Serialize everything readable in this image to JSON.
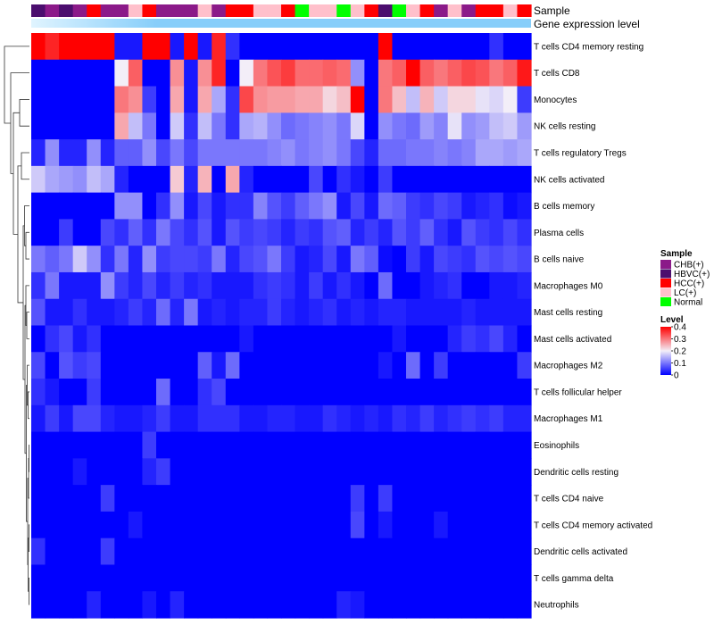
{
  "chart_data": {
    "type": "heatmap",
    "title": "",
    "rows": [
      "T cells CD4 memory resting",
      "T cells CD8",
      "Monocytes",
      "NK cells resting",
      "T cells regulatory  Tregs",
      "NK cells activated",
      "B cells memory",
      "Plasma cells",
      "B cells naive",
      "Macrophages M0",
      "Mast cells resting",
      "Mast cells activated",
      "Macrophages M2",
      "T cells follicular helper",
      "Macrophages M1",
      "Eosinophils",
      "Dendritic cells resting",
      "T cells CD4 naive",
      "T cells CD4 memory activated",
      "Dendritic cells activated",
      "T cells gamma delta",
      "Neutrophils"
    ],
    "samples": [
      "HBVC(+)",
      "CHB(+)",
      "HBVC(+)",
      "CHB(+)",
      "HCC(+)",
      "CHB(+)",
      "CHB(+)",
      "LC(+)",
      "HCC(+)",
      "CHB(+)",
      "CHB(+)",
      "CHB(+)",
      "LC(+)",
      "CHB(+)",
      "HCC(+)",
      "HCC(+)",
      "LC(+)",
      "LC(+)",
      "HCC(+)",
      "Normal",
      "LC(+)",
      "LC(+)",
      "Normal",
      "LC(+)",
      "HCC(+)",
      "HBVC(+)",
      "Normal",
      "LC(+)",
      "HCC(+)",
      "CHB(+)",
      "LC(+)",
      "CHB(+)",
      "HCC(+)",
      "HCC(+)",
      "LC(+)",
      "HCC(+)"
    ],
    "values": [
      [
        0.4,
        0.37,
        0.4,
        0.4,
        0.4,
        0.4,
        0.02,
        0.02,
        0.4,
        0.4,
        0.02,
        0.4,
        0.02,
        0.37,
        0.04,
        0.0,
        0.0,
        0.0,
        0.0,
        0.0,
        0.0,
        0.0,
        0.0,
        0.0,
        0.0,
        0.4,
        0.0,
        0.0,
        0.0,
        0.0,
        0.0,
        0.0,
        0.0,
        0.04,
        0.0,
        0.0
      ],
      [
        0.0,
        0.0,
        0.0,
        0.0,
        0.0,
        0.0,
        0.2,
        0.32,
        0.0,
        0.0,
        0.28,
        0.02,
        0.28,
        0.37,
        0.0,
        0.2,
        0.3,
        0.33,
        0.35,
        0.31,
        0.31,
        0.32,
        0.31,
        0.12,
        0.0,
        0.3,
        0.32,
        0.4,
        0.32,
        0.3,
        0.32,
        0.34,
        0.33,
        0.3,
        0.32,
        0.38
      ],
      [
        0.0,
        0.0,
        0.0,
        0.0,
        0.0,
        0.0,
        0.3,
        0.28,
        0.05,
        0.0,
        0.26,
        0.02,
        0.26,
        0.14,
        0.04,
        0.34,
        0.28,
        0.27,
        0.27,
        0.26,
        0.26,
        0.22,
        0.24,
        0.4,
        0.0,
        0.3,
        0.24,
        0.16,
        0.25,
        0.17,
        0.22,
        0.22,
        0.19,
        0.18,
        0.2,
        0.05
      ],
      [
        0.0,
        0.0,
        0.0,
        0.0,
        0.0,
        0.0,
        0.26,
        0.16,
        0.1,
        0.0,
        0.17,
        0.04,
        0.16,
        0.1,
        0.04,
        0.14,
        0.15,
        0.12,
        0.09,
        0.1,
        0.11,
        0.12,
        0.1,
        0.18,
        0.0,
        0.12,
        0.1,
        0.09,
        0.13,
        0.11,
        0.19,
        0.12,
        0.13,
        0.16,
        0.17,
        0.13
      ],
      [
        0.03,
        0.12,
        0.03,
        0.03,
        0.12,
        0.03,
        0.08,
        0.08,
        0.12,
        0.06,
        0.1,
        0.06,
        0.1,
        0.1,
        0.1,
        0.1,
        0.1,
        0.11,
        0.12,
        0.1,
        0.11,
        0.12,
        0.1,
        0.06,
        0.03,
        0.09,
        0.09,
        0.1,
        0.1,
        0.11,
        0.1,
        0.11,
        0.14,
        0.14,
        0.13,
        0.14
      ],
      [
        0.17,
        0.14,
        0.13,
        0.12,
        0.16,
        0.14,
        0.03,
        0.0,
        0.0,
        0.0,
        0.23,
        0.03,
        0.25,
        0.0,
        0.26,
        0.03,
        0.0,
        0.0,
        0.0,
        0.0,
        0.06,
        0.0,
        0.04,
        0.02,
        0.0,
        0.05,
        0.0,
        0.0,
        0.0,
        0.0,
        0.0,
        0.0,
        0.0,
        0.0,
        0.0,
        0.0
      ],
      [
        0.0,
        0.0,
        0.0,
        0.0,
        0.0,
        0.0,
        0.12,
        0.12,
        0.0,
        0.04,
        0.12,
        0.02,
        0.06,
        0.02,
        0.04,
        0.04,
        0.11,
        0.07,
        0.05,
        0.08,
        0.1,
        0.12,
        0.02,
        0.06,
        0.02,
        0.09,
        0.08,
        0.05,
        0.04,
        0.06,
        0.05,
        0.02,
        0.03,
        0.04,
        0.01,
        0.02
      ],
      [
        0.0,
        0.0,
        0.05,
        0.0,
        0.0,
        0.06,
        0.04,
        0.08,
        0.04,
        0.1,
        0.06,
        0.04,
        0.07,
        0.02,
        0.07,
        0.05,
        0.06,
        0.05,
        0.03,
        0.05,
        0.04,
        0.07,
        0.08,
        0.03,
        0.05,
        0.03,
        0.07,
        0.05,
        0.08,
        0.04,
        0.02,
        0.07,
        0.05,
        0.04,
        0.06,
        0.04
      ],
      [
        0.1,
        0.08,
        0.1,
        0.17,
        0.12,
        0.04,
        0.1,
        0.03,
        0.12,
        0.05,
        0.06,
        0.06,
        0.05,
        0.1,
        0.03,
        0.06,
        0.07,
        0.1,
        0.05,
        0.02,
        0.03,
        0.06,
        0.02,
        0.1,
        0.08,
        0.01,
        0.0,
        0.05,
        0.02,
        0.06,
        0.05,
        0.04,
        0.07,
        0.06,
        0.07,
        0.06
      ],
      [
        0.04,
        0.1,
        0.02,
        0.02,
        0.02,
        0.12,
        0.05,
        0.03,
        0.06,
        0.03,
        0.05,
        0.03,
        0.04,
        0.02,
        0.02,
        0.02,
        0.04,
        0.05,
        0.04,
        0.02,
        0.05,
        0.02,
        0.04,
        0.02,
        0.0,
        0.09,
        0.0,
        0.0,
        0.02,
        0.03,
        0.04,
        0.0,
        0.0,
        0.02,
        0.02,
        0.03
      ],
      [
        0.07,
        0.02,
        0.02,
        0.04,
        0.02,
        0.02,
        0.03,
        0.05,
        0.03,
        0.09,
        0.03,
        0.1,
        0.02,
        0.03,
        0.02,
        0.03,
        0.03,
        0.05,
        0.03,
        0.02,
        0.03,
        0.04,
        0.02,
        0.03,
        0.02,
        0.03,
        0.03,
        0.02,
        0.02,
        0.02,
        0.02,
        0.03,
        0.02,
        0.02,
        0.02,
        0.02
      ],
      [
        0.0,
        0.04,
        0.06,
        0.02,
        0.04,
        0.0,
        0.0,
        0.0,
        0.0,
        0.0,
        0.0,
        0.0,
        0.0,
        0.0,
        0.0,
        0.02,
        0.0,
        0.0,
        0.0,
        0.0,
        0.0,
        0.0,
        0.0,
        0.0,
        0.0,
        0.0,
        0.02,
        0.0,
        0.0,
        0.0,
        0.03,
        0.05,
        0.04,
        0.06,
        0.03,
        0.0
      ],
      [
        0.06,
        0.0,
        0.07,
        0.05,
        0.06,
        0.0,
        0.0,
        0.0,
        0.0,
        0.0,
        0.0,
        0.0,
        0.08,
        0.02,
        0.09,
        0.0,
        0.0,
        0.0,
        0.0,
        0.0,
        0.0,
        0.0,
        0.0,
        0.0,
        0.0,
        0.02,
        0.0,
        0.09,
        0.0,
        0.05,
        0.0,
        0.0,
        0.0,
        0.0,
        0.0,
        0.05
      ],
      [
        0.04,
        0.02,
        0.0,
        0.0,
        0.05,
        0.0,
        0.0,
        0.0,
        0.0,
        0.09,
        0.0,
        0.0,
        0.04,
        0.06,
        0.0,
        0.0,
        0.0,
        0.0,
        0.0,
        0.0,
        0.0,
        0.0,
        0.0,
        0.0,
        0.0,
        0.0,
        0.0,
        0.0,
        0.0,
        0.0,
        0.0,
        0.0,
        0.0,
        0.0,
        0.0,
        0.0
      ],
      [
        0.02,
        0.05,
        0.02,
        0.06,
        0.06,
        0.03,
        0.02,
        0.02,
        0.03,
        0.05,
        0.02,
        0.02,
        0.04,
        0.04,
        0.04,
        0.02,
        0.02,
        0.03,
        0.03,
        0.02,
        0.02,
        0.04,
        0.03,
        0.02,
        0.03,
        0.02,
        0.04,
        0.03,
        0.05,
        0.03,
        0.04,
        0.05,
        0.04,
        0.05,
        0.03,
        0.03
      ],
      [
        0.0,
        0.0,
        0.0,
        0.0,
        0.0,
        0.0,
        0.0,
        0.0,
        0.05,
        0.0,
        0.0,
        0.0,
        0.0,
        0.0,
        0.0,
        0.0,
        0.0,
        0.0,
        0.0,
        0.0,
        0.0,
        0.0,
        0.0,
        0.0,
        0.0,
        0.0,
        0.0,
        0.0,
        0.0,
        0.0,
        0.0,
        0.0,
        0.0,
        0.0,
        0.0,
        0.0
      ],
      [
        0.0,
        0.0,
        0.0,
        0.02,
        0.0,
        0.0,
        0.0,
        0.0,
        0.03,
        0.05,
        0.0,
        0.0,
        0.0,
        0.0,
        0.0,
        0.0,
        0.0,
        0.0,
        0.0,
        0.0,
        0.0,
        0.0,
        0.0,
        0.0,
        0.0,
        0.0,
        0.0,
        0.0,
        0.0,
        0.0,
        0.0,
        0.0,
        0.0,
        0.0,
        0.0,
        0.0
      ],
      [
        0.0,
        0.0,
        0.0,
        0.0,
        0.0,
        0.05,
        0.0,
        0.0,
        0.0,
        0.0,
        0.0,
        0.0,
        0.0,
        0.0,
        0.0,
        0.0,
        0.0,
        0.0,
        0.0,
        0.0,
        0.0,
        0.0,
        0.0,
        0.05,
        0.0,
        0.05,
        0.0,
        0.0,
        0.0,
        0.0,
        0.0,
        0.0,
        0.0,
        0.0,
        0.0,
        0.0
      ],
      [
        0.0,
        0.0,
        0.0,
        0.0,
        0.0,
        0.0,
        0.0,
        0.02,
        0.0,
        0.0,
        0.0,
        0.0,
        0.0,
        0.0,
        0.0,
        0.0,
        0.0,
        0.0,
        0.0,
        0.0,
        0.0,
        0.0,
        0.0,
        0.06,
        0.0,
        0.02,
        0.0,
        0.0,
        0.0,
        0.02,
        0.0,
        0.0,
        0.0,
        0.0,
        0.0,
        0.0
      ],
      [
        0.04,
        0.0,
        0.0,
        0.0,
        0.0,
        0.05,
        0.0,
        0.0,
        0.0,
        0.0,
        0.0,
        0.0,
        0.0,
        0.0,
        0.0,
        0.0,
        0.0,
        0.0,
        0.0,
        0.0,
        0.0,
        0.0,
        0.0,
        0.0,
        0.0,
        0.0,
        0.0,
        0.0,
        0.0,
        0.0,
        0.0,
        0.0,
        0.0,
        0.0,
        0.0,
        0.0
      ],
      [
        0.0,
        0.0,
        0.0,
        0.0,
        0.0,
        0.0,
        0.0,
        0.0,
        0.0,
        0.0,
        0.0,
        0.0,
        0.0,
        0.0,
        0.0,
        0.0,
        0.0,
        0.0,
        0.0,
        0.0,
        0.0,
        0.0,
        0.0,
        0.0,
        0.0,
        0.0,
        0.0,
        0.0,
        0.0,
        0.0,
        0.0,
        0.0,
        0.0,
        0.0,
        0.0,
        0.0
      ],
      [
        0.0,
        0.0,
        0.0,
        0.0,
        0.03,
        0.0,
        0.0,
        0.0,
        0.02,
        0.0,
        0.03,
        0.0,
        0.0,
        0.0,
        0.0,
        0.0,
        0.0,
        0.0,
        0.0,
        0.0,
        0.0,
        0.0,
        0.03,
        0.02,
        0.0,
        0.0,
        0.0,
        0.0,
        0.0,
        0.0,
        0.0,
        0.0,
        0.0,
        0.0,
        0.0,
        0.0
      ]
    ],
    "annotations": {
      "sample_label": "Sample",
      "gene_expression_label": "Gene expression level"
    },
    "legend": {
      "sample_title": "Sample",
      "sample_entries": [
        {
          "label": "CHB(+)",
          "color": "#8B1A89"
        },
        {
          "label": "HBVC(+)",
          "color": "#4B0E6E"
        },
        {
          "label": "HCC(+)",
          "color": "#FF0000"
        },
        {
          "label": "LC(+)",
          "color": "#FFC0CB"
        },
        {
          "label": "Normal",
          "color": "#00FF00"
        }
      ],
      "level_title": "Level",
      "level_ticks": [
        "0.4",
        "0.3",
        "0.2",
        "0.1",
        "0"
      ],
      "level_range": [
        0,
        0.4
      ]
    },
    "colors": {
      "low": "#0000FF",
      "mid": "#F3EEF8",
      "high": "#FF0000",
      "gene_bar": "#87CEFA",
      "gene_bar_light": "#E0F4FF"
    }
  }
}
